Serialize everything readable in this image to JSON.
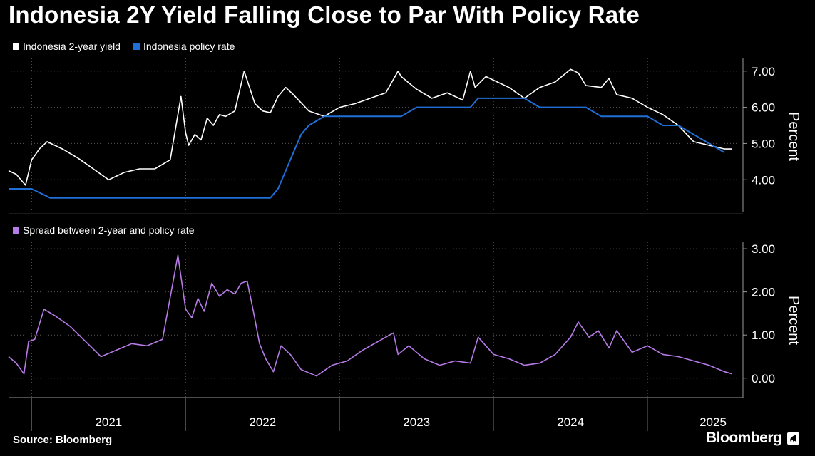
{
  "title": "Indonesia 2Y Yield Falling Close to Par With Policy Rate",
  "source": "Source: Bloomberg",
  "brand": "Bloomberg",
  "colors": {
    "background": "#000000",
    "yield": "#ffffff",
    "policy": "#1f6fd6",
    "spread": "#b77be8",
    "grid": "#555555",
    "axis": "#999999"
  },
  "chart_data": [
    {
      "type": "line",
      "title": "",
      "legend": "top-left",
      "ylabel": "Percent",
      "ylim": [
        3.1,
        7.35
      ],
      "yticks": [
        "4.00",
        "5.00",
        "6.00",
        "7.00"
      ],
      "ytick_values": [
        4,
        5,
        6,
        7
      ],
      "xlim": [
        2020.85,
        2025.62
      ],
      "grid": true,
      "series": [
        {
          "name": "Indonesia 2-year yield",
          "x": [
            2020.85,
            2020.9,
            2020.96,
            2021.0,
            2021.05,
            2021.1,
            2021.2,
            2021.3,
            2021.4,
            2021.5,
            2021.6,
            2021.7,
            2021.8,
            2021.9,
            2021.97,
            2022.0,
            2022.02,
            2022.06,
            2022.1,
            2022.14,
            2022.18,
            2022.22,
            2022.26,
            2022.32,
            2022.38,
            2022.45,
            2022.5,
            2022.55,
            2022.6,
            2022.65,
            2022.7,
            2022.8,
            2022.9,
            2023.0,
            2023.1,
            2023.2,
            2023.3,
            2023.38,
            2023.4,
            2023.5,
            2023.6,
            2023.7,
            2023.8,
            2023.85,
            2023.88,
            2023.95,
            2024.0,
            2024.1,
            2024.2,
            2024.3,
            2024.4,
            2024.5,
            2024.55,
            2024.6,
            2024.7,
            2024.75,
            2024.8,
            2024.9,
            2025.0,
            2025.1,
            2025.2,
            2025.3,
            2025.4,
            2025.5,
            2025.55
          ],
          "values": [
            4.25,
            4.15,
            3.85,
            4.55,
            4.85,
            5.05,
            4.85,
            4.6,
            4.3,
            4.0,
            4.2,
            4.3,
            4.3,
            4.55,
            6.3,
            5.3,
            4.95,
            5.25,
            5.1,
            5.7,
            5.5,
            5.8,
            5.75,
            5.9,
            7.0,
            6.1,
            5.9,
            5.85,
            6.3,
            6.55,
            6.35,
            5.9,
            5.75,
            6.0,
            6.1,
            6.25,
            6.4,
            7.0,
            6.85,
            6.5,
            6.25,
            6.4,
            6.2,
            7.0,
            6.55,
            6.85,
            6.75,
            6.55,
            6.25,
            6.55,
            6.7,
            7.05,
            6.95,
            6.6,
            6.55,
            6.8,
            6.35,
            6.25,
            6.0,
            5.8,
            5.5,
            5.05,
            4.95,
            4.85,
            4.85
          ]
        },
        {
          "name": "Indonesia policy rate",
          "x": [
            2020.85,
            2021.0,
            2021.12,
            2022.55,
            2022.6,
            2022.65,
            2022.7,
            2022.75,
            2022.8,
            2022.9,
            2023.0,
            2023.1,
            2023.2,
            2023.3,
            2023.4,
            2023.5,
            2023.6,
            2023.7,
            2023.8,
            2023.85,
            2023.9,
            2024.0,
            2024.1,
            2024.2,
            2024.3,
            2024.4,
            2024.5,
            2024.6,
            2024.7,
            2024.8,
            2024.9,
            2025.0,
            2025.1,
            2025.2,
            2025.3,
            2025.4,
            2025.5
          ],
          "values": [
            3.75,
            3.75,
            3.5,
            3.5,
            3.75,
            4.25,
            4.75,
            5.25,
            5.5,
            5.75,
            5.75,
            5.75,
            5.75,
            5.75,
            5.75,
            6.0,
            6.0,
            6.0,
            6.0,
            6.0,
            6.25,
            6.25,
            6.25,
            6.25,
            6.0,
            6.0,
            6.0,
            6.0,
            5.75,
            5.75,
            5.75,
            5.75,
            5.5,
            5.5,
            5.25,
            5.0,
            4.75
          ]
        }
      ]
    },
    {
      "type": "line",
      "title": "",
      "legend": "top-left",
      "ylabel": "Percent",
      "ylim": [
        -0.45,
        3.15
      ],
      "yticks": [
        "0.00",
        "1.00",
        "2.00",
        "3.00"
      ],
      "ytick_values": [
        0,
        1,
        2,
        3
      ],
      "xlim": [
        2020.85,
        2025.62
      ],
      "grid": true,
      "series": [
        {
          "name": "Spread between 2-year and policy rate",
          "x": [
            2020.85,
            2020.9,
            2020.95,
            2020.98,
            2021.02,
            2021.08,
            2021.15,
            2021.25,
            2021.35,
            2021.45,
            2021.55,
            2021.65,
            2021.75,
            2021.85,
            2021.95,
            2022.0,
            2022.04,
            2022.08,
            2022.12,
            2022.17,
            2022.22,
            2022.27,
            2022.32,
            2022.36,
            2022.4,
            2022.44,
            2022.48,
            2022.52,
            2022.57,
            2022.62,
            2022.68,
            2022.75,
            2022.85,
            2022.95,
            2023.05,
            2023.15,
            2023.25,
            2023.35,
            2023.38,
            2023.45,
            2023.55,
            2023.65,
            2023.75,
            2023.85,
            2023.9,
            2024.0,
            2024.1,
            2024.2,
            2024.3,
            2024.4,
            2024.5,
            2024.55,
            2024.62,
            2024.68,
            2024.75,
            2024.8,
            2024.9,
            2025.0,
            2025.1,
            2025.2,
            2025.3,
            2025.4,
            2025.5,
            2025.55
          ],
          "values": [
            0.5,
            0.35,
            0.1,
            0.85,
            0.9,
            1.6,
            1.45,
            1.2,
            0.85,
            0.5,
            0.65,
            0.8,
            0.75,
            0.9,
            2.85,
            1.6,
            1.4,
            1.85,
            1.55,
            2.2,
            1.9,
            2.05,
            1.95,
            2.2,
            2.25,
            1.55,
            0.8,
            0.45,
            0.15,
            0.75,
            0.55,
            0.2,
            0.05,
            0.3,
            0.4,
            0.65,
            0.85,
            1.05,
            0.55,
            0.75,
            0.45,
            0.3,
            0.4,
            0.35,
            0.95,
            0.55,
            0.45,
            0.3,
            0.35,
            0.55,
            0.95,
            1.3,
            0.95,
            1.1,
            0.7,
            1.1,
            0.6,
            0.75,
            0.55,
            0.5,
            0.4,
            0.3,
            0.15,
            0.1
          ]
        }
      ]
    }
  ],
  "xaxis": {
    "years": [
      "2021",
      "2022",
      "2023",
      "2024",
      "2025"
    ],
    "year_label_positions": [
      2021.5,
      2022.5,
      2023.5,
      2024.5,
      2025.5
    ],
    "year_boundaries": [
      2021.0,
      2022.0,
      2023.0,
      2024.0,
      2025.0
    ]
  }
}
